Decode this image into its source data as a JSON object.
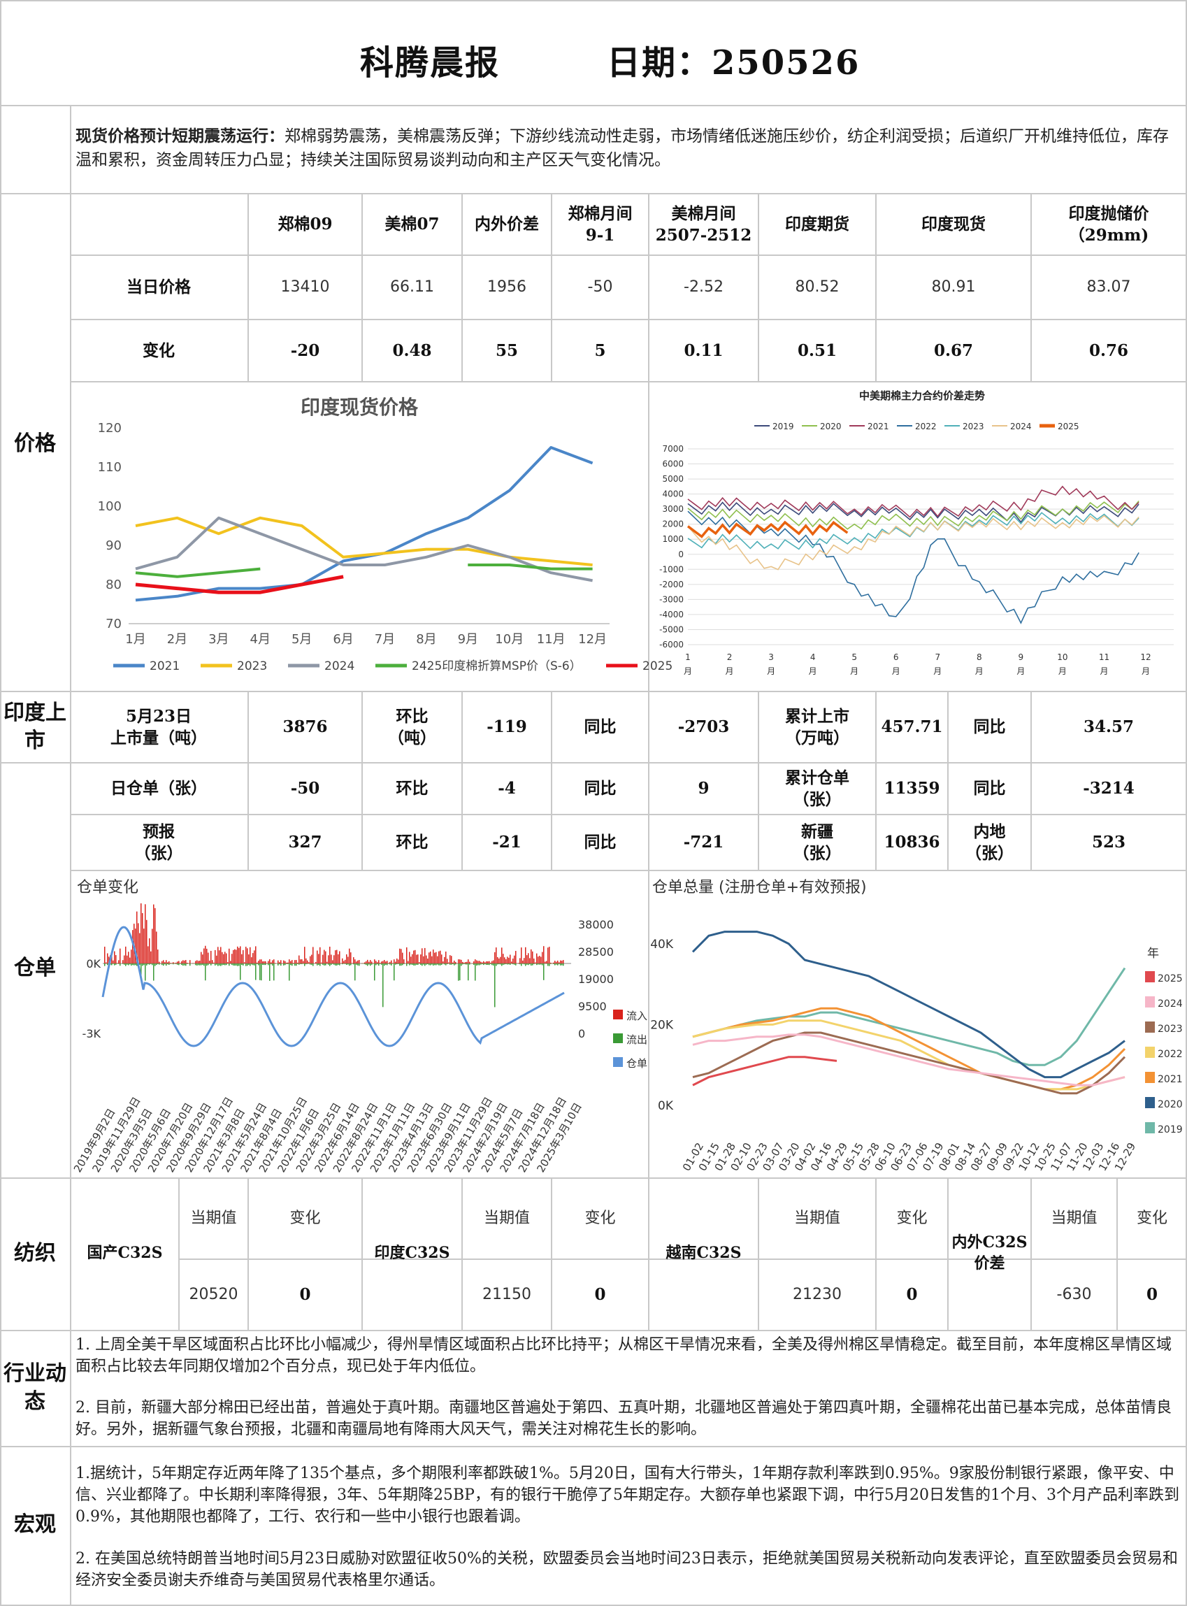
{
  "header": {
    "title": "科腾晨报",
    "date_label": "日期：250526"
  },
  "summary": {
    "lead": "现货价格预计短期震荡运行：",
    "text": "郑棉弱势震荡，美棉震荡反弹；下游纱线流动性走弱，市场情绪低迷施压纱价，纺企利润受损；后道织厂开机维持低位，库存温和累积，资金周转压力凸显；持续关注国际贸易谈判动向和主产区天气变化情况。"
  },
  "sections": {
    "price": "价格",
    "india": "印度上市",
    "warehouse": "仓单",
    "textile": "纺织",
    "industry": "行业动态",
    "macro": "宏观"
  },
  "price_table": {
    "headers": [
      "郑棉09",
      "美棉07",
      "内外价差",
      "郑棉月间\n9-1",
      "美棉月间\n2507-2512",
      "印度期货",
      "印度现货",
      "印度抛储价（29mm)"
    ],
    "row1_label": "当日价格",
    "row1": [
      "13410",
      "66.11",
      "1956",
      "-50",
      "-2.52",
      "80.52",
      "80.91",
      "83.07"
    ],
    "row2_label": "变化",
    "row2": [
      "-20",
      "0.48",
      "55",
      "5",
      "0.11",
      "0.51",
      "0.67",
      "0.76"
    ]
  },
  "india_row": {
    "l1": "5月23日\n上市量（吨）",
    "v1": "3876",
    "l2": "环比\n（吨）",
    "v2": "-119",
    "l3": "同比",
    "v3": "-2703",
    "l4": "累计上市\n（万吨）",
    "v4": "457.71",
    "l5": "同比",
    "v5": "34.57"
  },
  "wh_row1": {
    "l1": "日仓单（张）",
    "v1": "-50",
    "l2": "环比",
    "v2": "-4",
    "l3": "同比",
    "v3": "9",
    "l4": "累计仓单\n（张）",
    "v4": "11359",
    "l5": "同比",
    "v5": "-3214"
  },
  "wh_row2": {
    "l1": "预报\n（张）",
    "v1": "327",
    "l2": "环比",
    "v2": "-21",
    "l3": "同比",
    "v3": "-721",
    "l4": "新疆\n（张）",
    "v4": "10836",
    "l5": "内地\n（张）",
    "v5": "523"
  },
  "textile": {
    "items": [
      {
        "name": "国产C32S",
        "cur_label": "当期值",
        "chg_label": "变化",
        "cur": "20520",
        "chg": "0"
      },
      {
        "name": "印度C32S",
        "cur_label": "当期值",
        "chg_label": "变化",
        "cur": "21150",
        "chg": "0"
      },
      {
        "name": "越南C32S",
        "cur_label": "当期值",
        "chg_label": "变化",
        "cur": "21230",
        "chg": "0"
      },
      {
        "name": "内外C32S\n价差",
        "cur_label": "当期值",
        "chg_label": "变化",
        "cur": "-630",
        "chg": "0"
      }
    ]
  },
  "industry": {
    "p1": "1. 上周全美干旱区域面积占比环比小幅减少，得州旱情区域面积占比环比持平；从棉区干旱情况来看，全美及得州棉区旱情稳定。截至目前，本年度棉区旱情区域面积占比较去年同期仅增加2个百分点，现已处于年内低位。",
    "p2": "2. 目前，新疆大部分棉田已经出苗，普遍处于真叶期。南疆地区普遍处于第四、五真叶期，北疆地区普遍处于第四真叶期，全疆棉花出苗已基本完成，总体苗情良好。另外，据新疆气象台预报，北疆和南疆局地有降雨大风天气，需关注对棉花生长的影响。"
  },
  "macro": {
    "p1": "1.据统计，5年期定存近两年降了135个基点，多个期限利率都跌破1%。5月20日，国有大行带头，1年期存款利率跌到0.95%。9家股份制银行紧跟，像平安、中信、兴业都降了。中长期利率降得狠，3年、5年期降25BP，有的银行干脆停了5年期定存。大额存单也紧跟下调，中行5月20日发售的1个月、3个月产品利率跌到0.9%，其他期限也都降了，工行、农行和一些中小银行也跟着调。",
    "p2": "2. 在美国总统特朗普当地时间5月23日威胁对欧盟征收50%的关税，欧盟委员会当地时间23日表示，拒绝就美国贸易关税新动向发表评论，直至欧盟委员会贸易和经济安全委员谢夫乔维奇与美国贸易代表格里尔通话。"
  },
  "chart_data": [
    {
      "type": "line",
      "title": "印度现货价格",
      "categories": [
        "1月",
        "2月",
        "3月",
        "4月",
        "5月",
        "6月",
        "7月",
        "8月",
        "9月",
        "10月",
        "11月",
        "12月"
      ],
      "ylim": [
        70,
        120
      ],
      "yticks": [
        70,
        80,
        90,
        100,
        110,
        120
      ],
      "legend_position": "bottom",
      "series": [
        {
          "name": "2021",
          "color": "#4a86c8",
          "values": [
            76,
            77,
            79,
            79,
            80,
            86,
            88,
            93,
            97,
            104,
            115,
            111
          ]
        },
        {
          "name": "2023",
          "color": "#f2c21e",
          "values": [
            95,
            97,
            93,
            97,
            95,
            87,
            88,
            89,
            89,
            87,
            86,
            85
          ]
        },
        {
          "name": "2024",
          "color": "#8e97a6",
          "values": [
            84,
            87,
            97,
            93,
            89,
            85,
            85,
            87,
            90,
            87,
            83,
            81
          ]
        },
        {
          "name": "2425印度棉折算MSP价（S-6）",
          "color": "#4caf3c",
          "values": [
            83,
            82,
            83,
            84,
            null,
            null,
            null,
            null,
            85,
            85,
            84,
            84
          ]
        },
        {
          "name": "2025",
          "color": "#e8101a",
          "values": [
            80,
            79,
            78,
            78,
            80,
            82,
            null,
            null,
            null,
            null,
            null,
            null
          ]
        }
      ]
    },
    {
      "type": "line",
      "title": "中美期棉主力合约价差走势",
      "categories": [
        "1月",
        "2月",
        "3月",
        "4月",
        "5月",
        "6月",
        "7月",
        "8月",
        "9月",
        "10月",
        "11月",
        "12月"
      ],
      "ylim": [
        -6000,
        7000
      ],
      "yticks": [
        -6000,
        -5000,
        -4000,
        -3000,
        -2000,
        -1000,
        0,
        1000,
        2000,
        3000,
        4000,
        5000,
        6000,
        7000
      ],
      "legend_position": "top",
      "series": [
        {
          "name": "2019",
          "color": "#3c4a7a",
          "values": [
            3000,
            3100,
            2800,
            3100,
            2900,
            2700,
            2600,
            2800,
            2500,
            3000,
            2800,
            3000
          ]
        },
        {
          "name": "2020",
          "color": "#8fbf4e",
          "values": [
            2700,
            2600,
            2400,
            2200,
            2000,
            2300,
            2100,
            2400,
            2700,
            3000,
            3100,
            3200
          ]
        },
        {
          "name": "2021",
          "color": "#a03a5a",
          "values": [
            3300,
            3400,
            3200,
            3300,
            3000,
            2900,
            2700,
            3100,
            3300,
            4500,
            3500,
            3000
          ]
        },
        {
          "name": "2022",
          "color": "#2e6e9e",
          "values": [
            2500,
            2000,
            1500,
            1000,
            -2000,
            -4500,
            1200,
            -2000,
            -4200,
            -1500,
            -1500,
            0
          ]
        },
        {
          "name": "2023",
          "color": "#4fb0b8",
          "values": [
            700,
            1000,
            500,
            800,
            1100,
            1400,
            1800,
            2100,
            2400,
            2400,
            2300,
            2000
          ]
        },
        {
          "name": "2024",
          "color": "#e8c38a",
          "values": [
            1500,
            500,
            -1000,
            0,
            500,
            1500,
            1800,
            2000,
            2000,
            2100,
            2200,
            2100
          ]
        },
        {
          "name": "2025",
          "color": "#e8620f",
          "values": [
            1500,
            1600,
            1800,
            1700,
            1800,
            null,
            null,
            null,
            null,
            null,
            null,
            null
          ]
        }
      ]
    },
    {
      "type": "bar",
      "title": "仓单变化",
      "ytick_left": [
        "0K",
        "-3K"
      ],
      "ytick_right": [
        "38000",
        "28500",
        "19000",
        "9500",
        "0"
      ],
      "legend": [
        "流入",
        "流出",
        "仓单"
      ],
      "colors": {
        "inflow": "#d9231c",
        "outflow": "#3a9a35",
        "stock": "#5b93d8"
      },
      "x": [
        "2019年9月2日",
        "2019年11月29日",
        "2020年3月5日",
        "2020年5月6日",
        "2020年7月20日",
        "2020年9月29日",
        "2020年12月17日",
        "2021年3月8日",
        "2021年5月24日",
        "2021年8月4日",
        "2021年10月25日",
        "2022年1月6日",
        "2022年3月25日",
        "2022年6月14日",
        "2022年8月24日",
        "2022年11月1日",
        "2023年1月11日",
        "2023年4月13日",
        "2023年6月30日",
        "2023年9月11日",
        "2023年11月29日",
        "2024年2月19日",
        "2024年5月7日",
        "2024年7月18日",
        "2024年12月18日",
        "2025年3月10日"
      ]
    },
    {
      "type": "line",
      "title": "仓单总量 (注册仓单+有效预报)",
      "legend_title": "年",
      "yticks": [
        "0K",
        "20K",
        "40K"
      ],
      "x": [
        "01-02",
        "01-15",
        "01-28",
        "02-10",
        "02-23",
        "03-07",
        "03-20",
        "04-02",
        "04-16",
        "04-29",
        "05-15",
        "05-28",
        "06-10",
        "06-23",
        "07-06",
        "07-19",
        "08-01",
        "08-14",
        "08-27",
        "09-09",
        "09-22",
        "10-12",
        "10-25",
        "11-07",
        "11-20",
        "12-03",
        "12-16",
        "12-29"
      ],
      "series": [
        {
          "name": "2025",
          "color": "#e0494e",
          "values": [
            5,
            7,
            8,
            9,
            10,
            11,
            12,
            12,
            11.5,
            11,
            null,
            null,
            null,
            null,
            null,
            null,
            null,
            null,
            null,
            null,
            null,
            null,
            null,
            null,
            null,
            null,
            null,
            null
          ]
        },
        {
          "name": "2024",
          "color": "#f6b6c8",
          "values": [
            15,
            16,
            16,
            16.5,
            17,
            17,
            17.5,
            17.5,
            17,
            16,
            15,
            14,
            13,
            12,
            11,
            10,
            9,
            8.5,
            8,
            7.5,
            7,
            6.5,
            6,
            5.5,
            5,
            5,
            6,
            7
          ]
        },
        {
          "name": "2023",
          "color": "#9c6b52",
          "values": [
            7,
            8,
            10,
            12,
            14,
            16,
            17,
            18,
            18,
            17,
            16,
            15,
            14,
            13,
            12,
            11,
            10,
            9,
            8,
            7,
            6,
            5,
            4,
            3,
            3,
            5,
            8,
            12
          ]
        },
        {
          "name": "2022",
          "color": "#f3d36b",
          "values": [
            17,
            18,
            19,
            19.5,
            20,
            20,
            21,
            21,
            21,
            20,
            19,
            18,
            17,
            16,
            14,
            12,
            10,
            9,
            8,
            7,
            6,
            5,
            4,
            4,
            4,
            5,
            6,
            7
          ]
        },
        {
          "name": "2021",
          "color": "#f39234",
          "values": [
            17,
            18,
            19,
            20,
            20.5,
            21,
            22,
            23,
            24,
            24,
            23,
            22,
            20,
            18,
            16,
            14,
            12,
            10,
            8,
            7,
            6,
            5,
            4,
            4,
            5,
            7,
            10,
            14
          ]
        },
        {
          "name": "2020",
          "color": "#2e5f8c",
          "values": [
            38,
            42,
            43,
            43,
            43,
            42,
            40,
            36,
            35,
            34,
            33,
            32,
            30,
            28,
            26,
            24,
            22,
            20,
            18,
            15,
            12,
            9,
            7,
            7,
            9,
            11,
            13,
            16
          ]
        },
        {
          "name": "2019",
          "color": "#6fb8a8",
          "values": [
            17,
            18,
            19,
            20,
            21,
            21.5,
            22,
            22,
            23,
            23,
            22,
            21,
            20,
            19,
            18,
            17,
            16,
            15,
            14,
            13,
            11,
            10,
            10,
            12,
            16,
            22,
            28,
            34
          ]
        }
      ]
    }
  ]
}
